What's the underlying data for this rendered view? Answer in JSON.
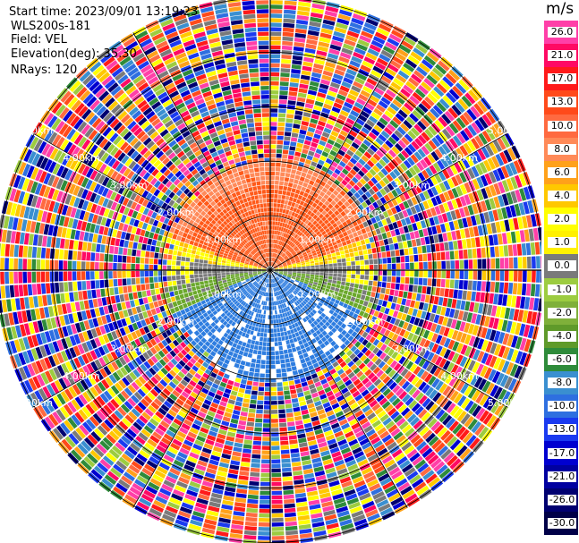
{
  "header": {
    "start_time": "Start time: 2023/09/01 13:19:23",
    "instrument": "WLS200s-181",
    "field": "Field: VEL",
    "elevation": "Elevation(deg): 35.30",
    "nrays": "NRays: 120"
  },
  "colorbar": {
    "unit": "m/s",
    "levels": [
      {
        "label": "26.0",
        "color": "#ff3fa8"
      },
      {
        "label": "21.0",
        "color": "#ff0a64"
      },
      {
        "label": "17.0",
        "color": "#ff1a1a"
      },
      {
        "label": "13.0",
        "color": "#ff4a1a"
      },
      {
        "label": "10.0",
        "color": "#ff6a40"
      },
      {
        "label": "8.0",
        "color": "#ff8a58"
      },
      {
        "label": "6.0",
        "color": "#ffa11a"
      },
      {
        "label": "4.0",
        "color": "#ffc800"
      },
      {
        "label": "2.0",
        "color": "#ffff00"
      },
      {
        "label": "1.0",
        "color": "#fff000"
      },
      {
        "label": "0.0",
        "color": "#7a7a7a"
      },
      {
        "label": "-1.0",
        "color": "#9ccc40"
      },
      {
        "label": "-2.0",
        "color": "#7fb03a"
      },
      {
        "label": "-4.0",
        "color": "#5f9a2a"
      },
      {
        "label": "-6.0",
        "color": "#2e8b3a"
      },
      {
        "label": "-8.0",
        "color": "#3a8fd0"
      },
      {
        "label": "-10.0",
        "color": "#2e6fe0"
      },
      {
        "label": "-13.0",
        "color": "#1a3af0"
      },
      {
        "label": "-17.0",
        "color": "#0000d0"
      },
      {
        "label": "-21.0",
        "color": "#0000a0"
      },
      {
        "label": "-26.0",
        "color": "#000070"
      },
      {
        "label": "-30.0",
        "color": "#000048"
      }
    ]
  },
  "range_rings": [
    "1.00km",
    "2.00km",
    "3.00km",
    "4.00km",
    "5.00km"
  ],
  "ppi": {
    "colors": {
      "near_north": "#ff5a1a",
      "north_mid": "#ff8a5a",
      "band_yellow": "#ffff00",
      "band_orange": "#ffc000",
      "near_zero": "#7a7a7a",
      "south_green": "#6aa82a",
      "south_blue": "#2e7de0",
      "noise": [
        "#ff3fa8",
        "#ff0a64",
        "#0000d0",
        "#1a3af0",
        "#ffff00",
        "#2e8b3a",
        "#ff6a40",
        "#000070",
        "#9ccc40",
        "#ff1a1a",
        "#2e6fe0",
        "#ffa11a",
        "#3a8fd0",
        "#ffc800",
        "#7a7a7a",
        "#ff4a1a"
      ]
    }
  }
}
